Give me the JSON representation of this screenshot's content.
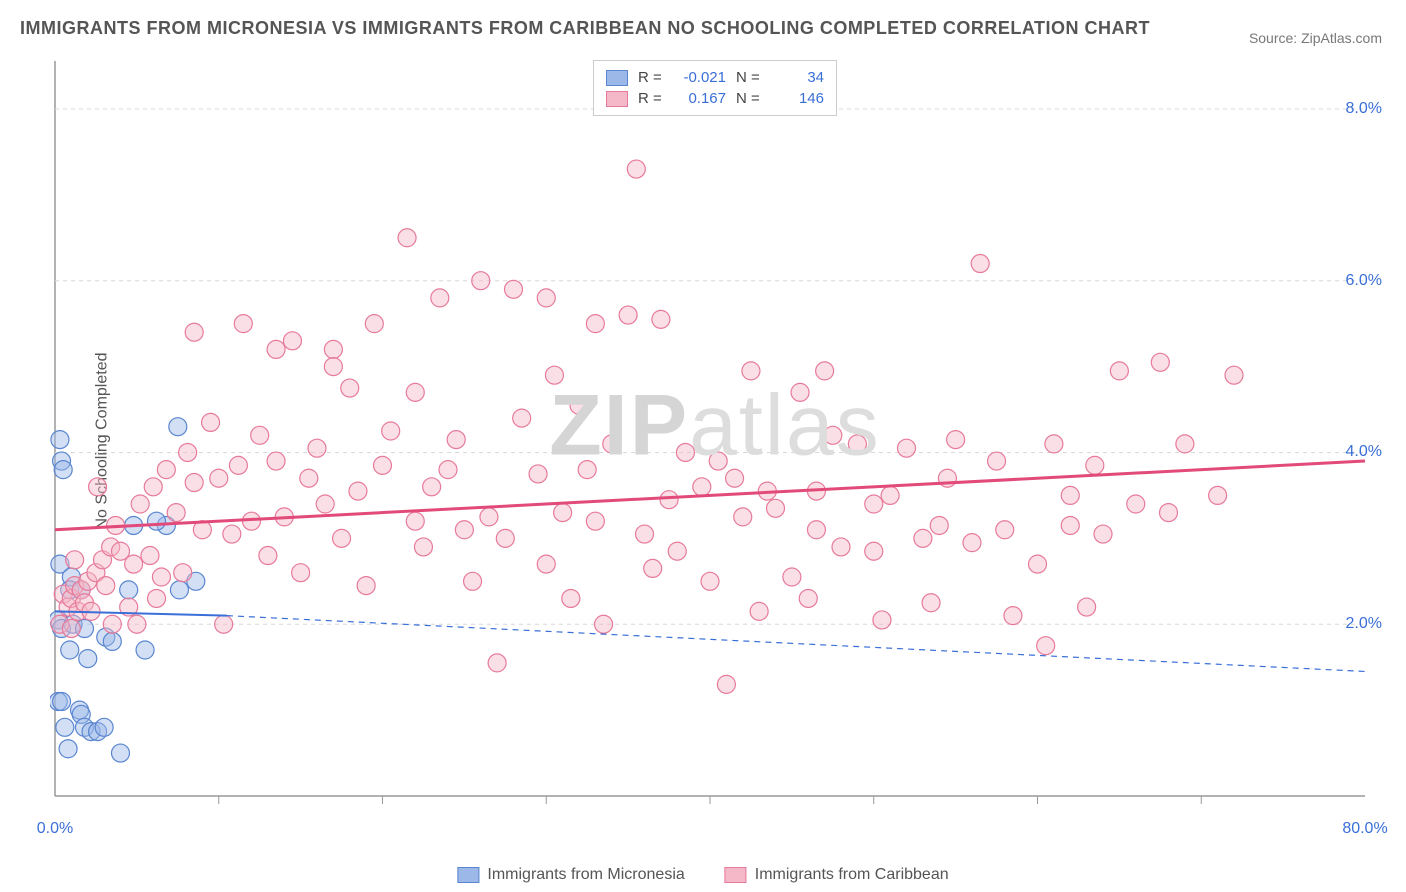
{
  "title": "IMMIGRANTS FROM MICRONESIA VS IMMIGRANTS FROM CARIBBEAN NO SCHOOLING COMPLETED CORRELATION CHART",
  "source_label": "Source:",
  "source_value": "ZipAtlas.com",
  "y_axis_label": "No Schooling Completed",
  "watermark": "ZIPatlas",
  "chart": {
    "type": "scatter",
    "background_color": "#ffffff",
    "grid_color": "#d8d8d8",
    "axis_color": "#999999",
    "xlim": [
      0,
      80
    ],
    "ylim": [
      0,
      8.5
    ],
    "x_ticks": [
      0,
      80
    ],
    "x_tick_labels": [
      "0.0%",
      "80.0%"
    ],
    "x_minor_ticks": [
      10,
      20,
      30,
      40,
      50,
      60,
      70
    ],
    "y_ticks": [
      2,
      4,
      6,
      8
    ],
    "y_tick_labels": [
      "2.0%",
      "4.0%",
      "6.0%",
      "8.0%"
    ],
    "marker_radius": 9,
    "marker_opacity": 0.45,
    "series": [
      {
        "name": "Immigrants from Micronesia",
        "color_fill": "#9bb8e8",
        "color_stroke": "#5a86d0",
        "r_value": "-0.021",
        "n_value": "34",
        "regression": {
          "x1": 0,
          "y1": 2.15,
          "x2": 10.5,
          "y2": 2.1,
          "solid_until_x": 10.5,
          "dash_to_x": 80,
          "dash_y": 1.45,
          "stroke": "#3a6fd8",
          "width": 2
        },
        "points": [
          [
            0.3,
            4.15
          ],
          [
            0.4,
            3.9
          ],
          [
            0.5,
            3.8
          ],
          [
            0.3,
            2.7
          ],
          [
            1.0,
            2.55
          ],
          [
            0.9,
            2.4
          ],
          [
            1.6,
            2.4
          ],
          [
            0.2,
            2.05
          ],
          [
            0.4,
            1.95
          ],
          [
            1.1,
            2.0
          ],
          [
            1.8,
            1.95
          ],
          [
            3.1,
            1.85
          ],
          [
            3.5,
            1.8
          ],
          [
            0.9,
            1.7
          ],
          [
            2.0,
            1.6
          ],
          [
            5.5,
            1.7
          ],
          [
            0.2,
            1.1
          ],
          [
            0.4,
            1.1
          ],
          [
            1.5,
            1.0
          ],
          [
            1.6,
            0.95
          ],
          [
            0.6,
            0.8
          ],
          [
            1.8,
            0.8
          ],
          [
            2.2,
            0.75
          ],
          [
            2.6,
            0.75
          ],
          [
            3.0,
            0.8
          ],
          [
            0.8,
            0.55
          ],
          [
            4.0,
            0.5
          ],
          [
            4.5,
            2.4
          ],
          [
            7.6,
            2.4
          ],
          [
            8.6,
            2.5
          ],
          [
            7.5,
            4.3
          ],
          [
            4.8,
            3.15
          ],
          [
            6.8,
            3.15
          ],
          [
            6.2,
            3.2
          ]
        ]
      },
      {
        "name": "Immigrants from Caribbean",
        "color_fill": "#f5b8c8",
        "color_stroke": "#e77a9a",
        "r_value": "0.167",
        "n_value": "146",
        "regression": {
          "x1": 0,
          "y1": 3.1,
          "x2": 80,
          "y2": 3.9,
          "stroke": "#e24a7a",
          "width": 3
        },
        "points": [
          [
            0.5,
            2.35
          ],
          [
            0.8,
            2.2
          ],
          [
            1.0,
            2.3
          ],
          [
            1.2,
            2.45
          ],
          [
            1.4,
            2.15
          ],
          [
            1.6,
            2.4
          ],
          [
            1.8,
            2.25
          ],
          [
            2.0,
            2.5
          ],
          [
            2.2,
            2.15
          ],
          [
            2.5,
            2.6
          ],
          [
            2.9,
            2.75
          ],
          [
            3.1,
            2.45
          ],
          [
            3.4,
            2.9
          ],
          [
            1.2,
            2.75
          ],
          [
            2.6,
            3.6
          ],
          [
            3.7,
            3.15
          ],
          [
            4.0,
            2.85
          ],
          [
            4.5,
            2.2
          ],
          [
            4.8,
            2.7
          ],
          [
            5.2,
            3.4
          ],
          [
            5.8,
            2.8
          ],
          [
            6.0,
            3.6
          ],
          [
            6.2,
            2.3
          ],
          [
            6.8,
            3.8
          ],
          [
            7.4,
            3.3
          ],
          [
            7.8,
            2.6
          ],
          [
            8.1,
            4.0
          ],
          [
            8.5,
            3.65
          ],
          [
            9.0,
            3.1
          ],
          [
            9.5,
            4.35
          ],
          [
            10.0,
            3.7
          ],
          [
            10.3,
            2.0
          ],
          [
            10.8,
            3.05
          ],
          [
            11.2,
            3.85
          ],
          [
            11.5,
            5.5
          ],
          [
            12.0,
            3.2
          ],
          [
            12.5,
            4.2
          ],
          [
            13.0,
            2.8
          ],
          [
            13.5,
            3.9
          ],
          [
            14.0,
            3.25
          ],
          [
            14.5,
            5.3
          ],
          [
            15.0,
            2.6
          ],
          [
            15.5,
            3.7
          ],
          [
            16.0,
            4.05
          ],
          [
            16.5,
            3.4
          ],
          [
            17.0,
            5.2
          ],
          [
            17.5,
            3.0
          ],
          [
            18.0,
            4.75
          ],
          [
            18.5,
            3.55
          ],
          [
            19.0,
            2.45
          ],
          [
            19.5,
            5.5
          ],
          [
            20.0,
            3.85
          ],
          [
            20.5,
            4.25
          ],
          [
            21.5,
            6.5
          ],
          [
            22.0,
            4.7
          ],
          [
            22.5,
            2.9
          ],
          [
            23.0,
            3.6
          ],
          [
            23.5,
            5.8
          ],
          [
            24.0,
            3.8
          ],
          [
            24.5,
            4.15
          ],
          [
            25.0,
            3.1
          ],
          [
            25.5,
            2.5
          ],
          [
            26.0,
            6.0
          ],
          [
            26.5,
            3.25
          ],
          [
            27.0,
            1.55
          ],
          [
            27.5,
            3.0
          ],
          [
            28.0,
            5.9
          ],
          [
            28.5,
            4.4
          ],
          [
            29.5,
            3.75
          ],
          [
            30.0,
            2.7
          ],
          [
            30.5,
            4.9
          ],
          [
            31.0,
            3.3
          ],
          [
            31.5,
            2.3
          ],
          [
            32.0,
            4.55
          ],
          [
            32.5,
            3.8
          ],
          [
            33.0,
            3.2
          ],
          [
            33.5,
            2.0
          ],
          [
            34.0,
            4.1
          ],
          [
            35.0,
            5.6
          ],
          [
            35.5,
            7.3
          ],
          [
            36.0,
            3.05
          ],
          [
            36.5,
            2.65
          ],
          [
            37.0,
            5.55
          ],
          [
            37.5,
            3.45
          ],
          [
            38.0,
            2.85
          ],
          [
            38.5,
            4.0
          ],
          [
            39.5,
            3.6
          ],
          [
            40.0,
            2.5
          ],
          [
            40.5,
            3.9
          ],
          [
            41.0,
            1.3
          ],
          [
            42.0,
            3.25
          ],
          [
            42.5,
            4.95
          ],
          [
            43.0,
            2.15
          ],
          [
            43.5,
            3.55
          ],
          [
            44.0,
            3.35
          ],
          [
            45.0,
            2.55
          ],
          [
            45.5,
            4.7
          ],
          [
            46.0,
            2.3
          ],
          [
            46.5,
            3.1
          ],
          [
            47.5,
            4.2
          ],
          [
            48.0,
            2.9
          ],
          [
            49.0,
            4.1
          ],
          [
            50.0,
            3.4
          ],
          [
            50.5,
            2.05
          ],
          [
            51.0,
            3.5
          ],
          [
            52.0,
            4.05
          ],
          [
            53.0,
            3.0
          ],
          [
            53.5,
            2.25
          ],
          [
            54.5,
            3.7
          ],
          [
            55.0,
            4.15
          ],
          [
            56.0,
            2.95
          ],
          [
            56.5,
            6.2
          ],
          [
            57.5,
            3.9
          ],
          [
            58.0,
            3.1
          ],
          [
            58.5,
            2.1
          ],
          [
            60.0,
            2.7
          ],
          [
            60.5,
            1.75
          ],
          [
            61.0,
            4.1
          ],
          [
            62.0,
            3.15
          ],
          [
            63.0,
            2.2
          ],
          [
            63.5,
            3.85
          ],
          [
            65.0,
            4.95
          ],
          [
            66.0,
            3.4
          ],
          [
            67.5,
            5.05
          ],
          [
            68.0,
            3.3
          ],
          [
            69.0,
            4.1
          ],
          [
            71.0,
            3.5
          ],
          [
            72.0,
            4.9
          ],
          [
            0.3,
            2.0
          ],
          [
            1.0,
            1.95
          ],
          [
            8.5,
            5.4
          ],
          [
            13.5,
            5.2
          ],
          [
            17.0,
            5.0
          ],
          [
            30.0,
            5.8
          ],
          [
            33.0,
            5.5
          ],
          [
            47.0,
            4.95
          ],
          [
            62.0,
            3.5
          ],
          [
            3.5,
            2.0
          ],
          [
            5.0,
            2.0
          ],
          [
            6.5,
            2.55
          ],
          [
            41.5,
            3.7
          ],
          [
            46.5,
            3.55
          ],
          [
            50.0,
            2.85
          ],
          [
            54.0,
            3.15
          ],
          [
            64.0,
            3.05
          ],
          [
            22.0,
            3.2
          ]
        ]
      }
    ]
  },
  "bottom_legend": [
    {
      "label": "Immigrants from Micronesia",
      "fill": "#9bb8e8",
      "stroke": "#5a86d0"
    },
    {
      "label": "Immigrants from Caribbean",
      "fill": "#f5b8c8",
      "stroke": "#e77a9a"
    }
  ]
}
